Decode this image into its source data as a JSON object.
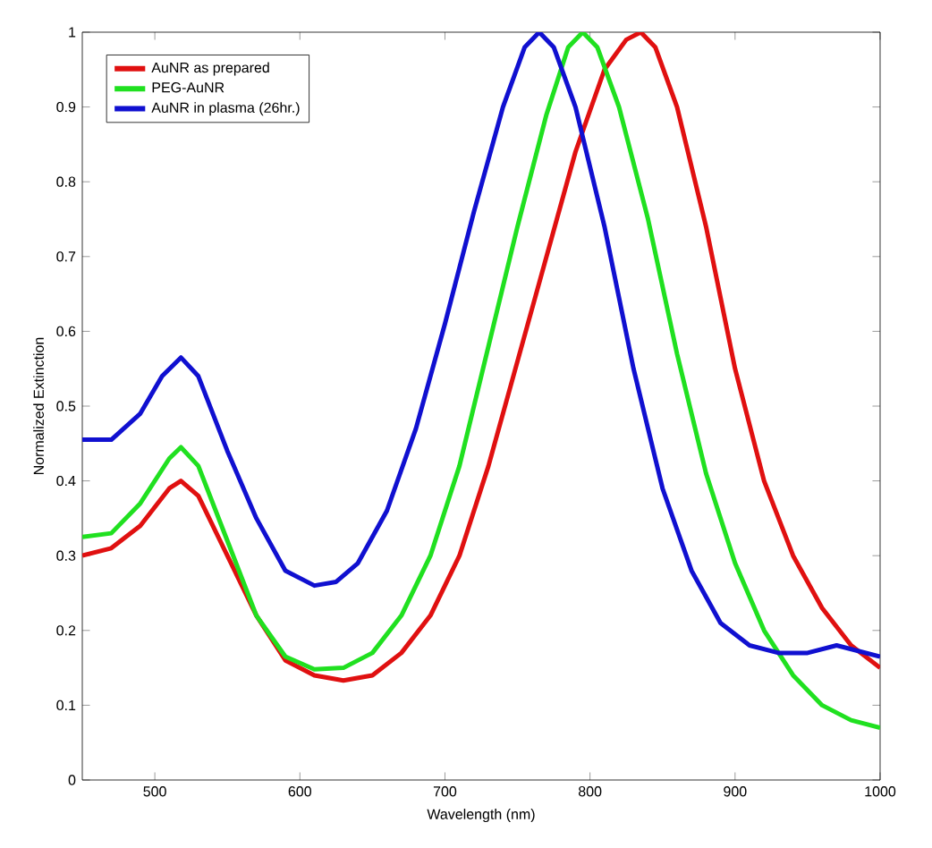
{
  "chart_data": {
    "type": "line",
    "xlabel": "Wavelength (nm)",
    "ylabel": "Normalized Extinction",
    "xlim": [
      450,
      1000
    ],
    "xticks": [
      500,
      600,
      700,
      800,
      900,
      1000
    ],
    "ylim": [
      0,
      1
    ],
    "yticks": [
      0,
      0.1,
      0.2,
      0.3,
      0.4,
      0.5,
      0.6,
      0.7,
      0.8,
      0.9,
      1
    ],
    "legend": "top left",
    "grid": false,
    "series": [
      {
        "name": "AuNR as prepared",
        "color": "#e01010",
        "x": [
          450,
          470,
          490,
          510,
          518,
          530,
          550,
          570,
          590,
          610,
          630,
          650,
          670,
          690,
          710,
          730,
          750,
          770,
          790,
          810,
          825,
          835,
          845,
          860,
          880,
          900,
          920,
          940,
          960,
          980,
          1000
        ],
        "values": [
          0.3,
          0.31,
          0.34,
          0.39,
          0.4,
          0.38,
          0.3,
          0.22,
          0.16,
          0.14,
          0.133,
          0.14,
          0.17,
          0.22,
          0.3,
          0.42,
          0.56,
          0.7,
          0.84,
          0.95,
          0.99,
          1.0,
          0.98,
          0.9,
          0.74,
          0.55,
          0.4,
          0.3,
          0.23,
          0.18,
          0.15
        ]
      },
      {
        "name": "PEG-AuNR",
        "color": "#20e020",
        "x": [
          450,
          470,
          490,
          510,
          518,
          530,
          550,
          570,
          590,
          610,
          630,
          650,
          670,
          690,
          710,
          730,
          750,
          770,
          785,
          795,
          805,
          820,
          840,
          860,
          880,
          900,
          920,
          940,
          960,
          980,
          1000
        ],
        "values": [
          0.325,
          0.33,
          0.37,
          0.43,
          0.445,
          0.42,
          0.32,
          0.22,
          0.165,
          0.148,
          0.15,
          0.17,
          0.22,
          0.3,
          0.42,
          0.58,
          0.74,
          0.89,
          0.98,
          1.0,
          0.98,
          0.9,
          0.75,
          0.57,
          0.41,
          0.29,
          0.2,
          0.14,
          0.1,
          0.08,
          0.07
        ]
      },
      {
        "name": "AuNR in plasma (26hr.)",
        "color": "#1010d0",
        "x": [
          450,
          470,
          490,
          505,
          518,
          530,
          550,
          570,
          590,
          610,
          625,
          640,
          660,
          680,
          700,
          720,
          740,
          755,
          765,
          775,
          790,
          810,
          830,
          850,
          870,
          890,
          910,
          930,
          950,
          970,
          990,
          1000
        ],
        "values": [
          0.455,
          0.455,
          0.49,
          0.54,
          0.565,
          0.54,
          0.44,
          0.35,
          0.28,
          0.26,
          0.265,
          0.29,
          0.36,
          0.47,
          0.61,
          0.76,
          0.9,
          0.98,
          1.0,
          0.98,
          0.9,
          0.74,
          0.55,
          0.39,
          0.28,
          0.21,
          0.18,
          0.17,
          0.17,
          0.18,
          0.17,
          0.165
        ]
      }
    ]
  }
}
